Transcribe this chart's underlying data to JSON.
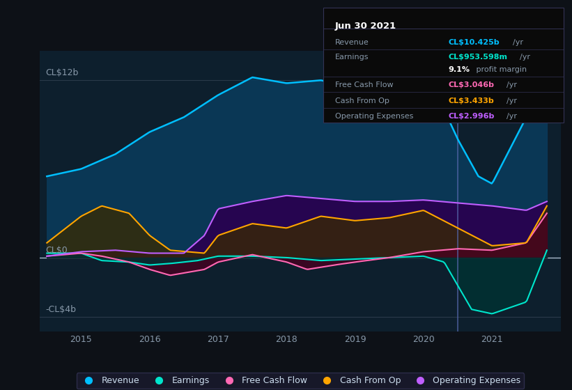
{
  "bg_color": "#0d1117",
  "plot_bg_color": "#0d1f2d",
  "title_box": {
    "date": "Jun 30 2021",
    "rows": [
      {
        "label": "Revenue",
        "value": "CL$10.425b",
        "unit": "/yr",
        "color": "#00bfff"
      },
      {
        "label": "Earnings",
        "value": "CL$953.598m",
        "unit": "/yr",
        "color": "#00e5cc"
      },
      {
        "label": "",
        "value": "9.1%",
        "unit": " profit margin",
        "color": "#ffffff"
      },
      {
        "label": "Free Cash Flow",
        "value": "CL$3.046b",
        "unit": "/yr",
        "color": "#ff69b4"
      },
      {
        "label": "Cash From Op",
        "value": "CL$3.433b",
        "unit": "/yr",
        "color": "#ffa500"
      },
      {
        "label": "Operating Expenses",
        "value": "CL$2.996b",
        "unit": "/yr",
        "color": "#bf5fff"
      }
    ]
  },
  "yticks": [
    {
      "label": "CL$12b",
      "value": 12
    },
    {
      "label": "CL$0",
      "value": 0
    },
    {
      "label": "-CL$4b",
      "value": -4
    }
  ],
  "ylim": [
    -5,
    14
  ],
  "xlim_start": 2014.4,
  "xlim_end": 2022.0,
  "xticks": [
    2015,
    2016,
    2017,
    2018,
    2019,
    2020,
    2021
  ],
  "series": {
    "revenue": {
      "color": "#00bfff",
      "fill_color": "#0a3a5a",
      "label": "Revenue"
    },
    "earnings": {
      "color": "#00e5cc",
      "fill_color": "#003333",
      "label": "Earnings"
    },
    "free_cash_flow": {
      "color": "#ff69b4",
      "fill_color": "#4a0020",
      "label": "Free Cash Flow"
    },
    "cash_from_op": {
      "color": "#ffa500",
      "fill_color": "#3a2a00",
      "label": "Cash From Op"
    },
    "operating_expenses": {
      "color": "#bf5fff",
      "fill_color": "#2a0050",
      "label": "Operating Expenses"
    }
  },
  "vertical_line_x": 2020.5,
  "legend_items": [
    {
      "label": "Revenue",
      "color": "#00bfff"
    },
    {
      "label": "Earnings",
      "color": "#00e5cc"
    },
    {
      "label": "Free Cash Flow",
      "color": "#ff69b4"
    },
    {
      "label": "Cash From Op",
      "color": "#ffa500"
    },
    {
      "label": "Operating Expenses",
      "color": "#bf5fff"
    }
  ]
}
